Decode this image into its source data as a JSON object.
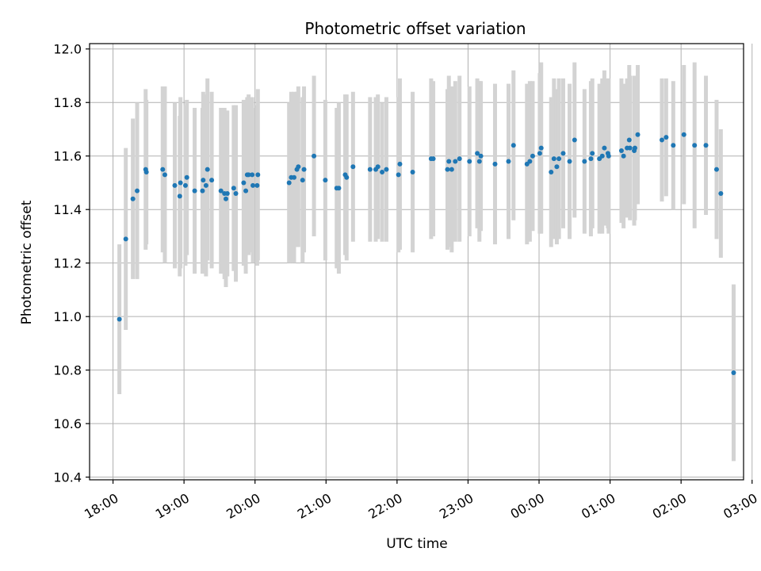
{
  "chart_data": {
    "type": "scatter",
    "title": "Photometric offset variation",
    "xlabel": "UTC time",
    "ylabel": "Photometric offset",
    "x_unit": "hours since 18:00 UTC",
    "xlim": [
      -0.33,
      8.88
    ],
    "ylim": [
      10.39,
      12.02
    ],
    "grid": true,
    "x_tick_values": [
      0,
      1,
      2,
      3,
      4,
      5,
      6,
      7,
      8,
      9
    ],
    "x_tick_labels": [
      "18:00",
      "19:00",
      "20:00",
      "21:00",
      "22:00",
      "23:00",
      "00:00",
      "01:00",
      "02:00",
      "03:00"
    ],
    "y_tick_values": [
      10.4,
      10.6,
      10.8,
      11.0,
      11.2,
      11.4,
      11.6,
      11.8,
      12.0
    ],
    "y_tick_labels": [
      "10.4",
      "10.6",
      "10.8",
      "11.0",
      "11.2",
      "11.4",
      "11.6",
      "11.8",
      "12.0"
    ],
    "colors": {
      "point": "#1f77b4",
      "errorbar": "#d3d3d3",
      "grid": "#b0b0b0",
      "axes": "#000000"
    },
    "series": [
      {
        "name": "Photometric offset",
        "x": [
          0.09,
          0.18,
          0.28,
          0.34,
          0.46,
          0.47,
          0.7,
          0.73,
          0.87,
          0.94,
          0.95,
          1.02,
          1.04,
          1.15,
          1.26,
          1.27,
          1.31,
          1.33,
          1.39,
          1.52,
          1.57,
          1.59,
          1.61,
          1.7,
          1.73,
          1.84,
          1.87,
          1.89,
          1.91,
          1.96,
          1.97,
          2.03,
          2.04,
          2.48,
          2.51,
          2.55,
          2.59,
          2.61,
          2.67,
          2.69,
          2.83,
          2.99,
          3.15,
          3.18,
          3.27,
          3.29,
          3.38,
          3.62,
          3.7,
          3.73,
          3.79,
          3.85,
          4.02,
          4.04,
          4.22,
          4.48,
          4.51,
          4.71,
          4.73,
          4.77,
          4.82,
          4.88,
          5.02,
          5.13,
          5.16,
          5.18,
          5.38,
          5.57,
          5.64,
          5.83,
          5.87,
          5.91,
          6.01,
          6.03,
          6.17,
          6.21,
          6.25,
          6.28,
          6.34,
          6.43,
          6.5,
          6.64,
          6.73,
          6.75,
          6.85,
          6.89,
          6.92,
          6.97,
          6.98,
          7.16,
          7.19,
          7.24,
          7.27,
          7.28,
          7.34,
          7.35,
          7.39,
          7.73,
          7.79,
          7.89,
          8.04,
          8.19,
          8.35,
          8.5,
          8.56,
          8.74
        ],
        "y": [
          10.99,
          11.29,
          11.44,
          11.47,
          11.55,
          11.54,
          11.55,
          11.53,
          11.49,
          11.45,
          11.5,
          11.49,
          11.52,
          11.47,
          11.47,
          11.51,
          11.49,
          11.55,
          11.51,
          11.47,
          11.46,
          11.44,
          11.46,
          11.48,
          11.46,
          11.5,
          11.47,
          11.53,
          11.53,
          11.53,
          11.49,
          11.49,
          11.53,
          11.5,
          11.52,
          11.52,
          11.55,
          11.56,
          11.51,
          11.55,
          11.6,
          11.51,
          11.48,
          11.48,
          11.53,
          11.52,
          11.56,
          11.55,
          11.55,
          11.56,
          11.54,
          11.55,
          11.53,
          11.57,
          11.54,
          11.59,
          11.59,
          11.55,
          11.58,
          11.55,
          11.58,
          11.59,
          11.58,
          11.61,
          11.58,
          11.6,
          11.57,
          11.58,
          11.64,
          11.57,
          11.58,
          11.6,
          11.61,
          11.63,
          11.54,
          11.59,
          11.56,
          11.59,
          11.61,
          11.58,
          11.66,
          11.58,
          11.59,
          11.61,
          11.59,
          11.6,
          11.63,
          11.61,
          11.6,
          11.62,
          11.6,
          11.63,
          11.66,
          11.63,
          11.62,
          11.63,
          11.68,
          11.66,
          11.67,
          11.64,
          11.68,
          11.64,
          11.64,
          11.55,
          11.46,
          10.79
        ],
        "err": [
          0.28,
          0.34,
          0.3,
          0.33,
          0.3,
          0.27,
          0.31,
          0.33,
          0.31,
          0.3,
          0.32,
          0.3,
          0.29,
          0.31,
          0.31,
          0.33,
          0.34,
          0.34,
          0.33,
          0.31,
          0.32,
          0.33,
          0.31,
          0.31,
          0.33,
          0.31,
          0.31,
          0.29,
          0.3,
          0.29,
          0.29,
          0.3,
          0.32,
          0.3,
          0.32,
          0.32,
          0.29,
          0.3,
          0.31,
          0.31,
          0.3,
          0.3,
          0.3,
          0.32,
          0.3,
          0.31,
          0.28,
          0.27,
          0.27,
          0.27,
          0.26,
          0.27,
          0.29,
          0.32,
          0.3,
          0.3,
          0.29,
          0.3,
          0.32,
          0.31,
          0.3,
          0.31,
          0.28,
          0.28,
          0.3,
          0.28,
          0.3,
          0.29,
          0.28,
          0.3,
          0.3,
          0.28,
          0.3,
          0.32,
          0.28,
          0.3,
          0.29,
          0.3,
          0.28,
          0.29,
          0.29,
          0.27,
          0.29,
          0.28,
          0.28,
          0.29,
          0.29,
          0.28,
          0.29,
          0.27,
          0.27,
          0.26,
          0.28,
          0.27,
          0.28,
          0.27,
          0.26,
          0.23,
          0.22,
          0.24,
          0.26,
          0.31,
          0.26,
          0.26,
          0.24,
          0.33
        ]
      }
    ]
  }
}
